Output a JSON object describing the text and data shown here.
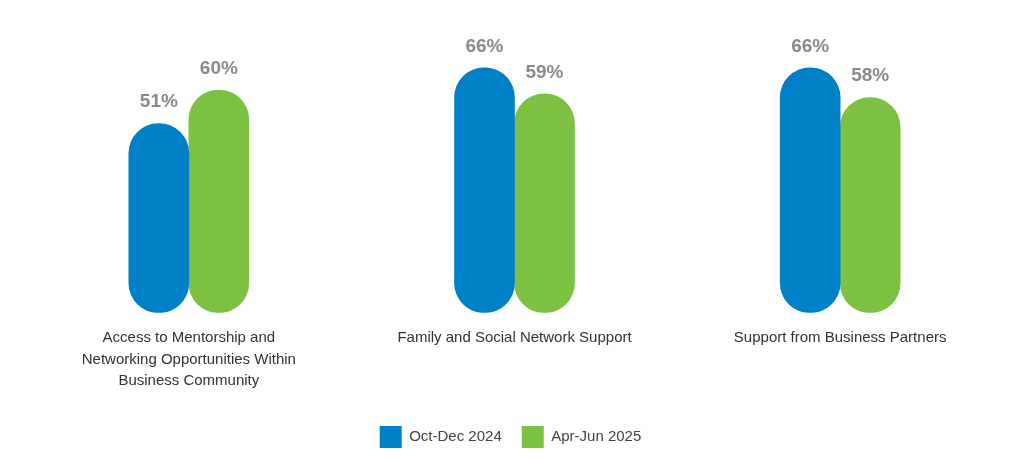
{
  "chart_data": {
    "type": "bar",
    "categories": [
      "Access to Mentorship and Networking Opportunities Within Business Community",
      "Family and Social Network Support",
      "Support from Business Partners"
    ],
    "series": [
      {
        "name": "Oct-Dec 2024",
        "color": "#0080c6",
        "values": [
          51,
          66,
          66
        ],
        "value_labels": [
          "51%",
          "66%",
          "66%"
        ]
      },
      {
        "name": "Apr-Jun 2025",
        "color": "#7dc142",
        "values": [
          60,
          59,
          58
        ],
        "value_labels": [
          "60%",
          "59%",
          "58%"
        ]
      }
    ],
    "legend": "bottom",
    "grid": false,
    "relative": false
  }
}
